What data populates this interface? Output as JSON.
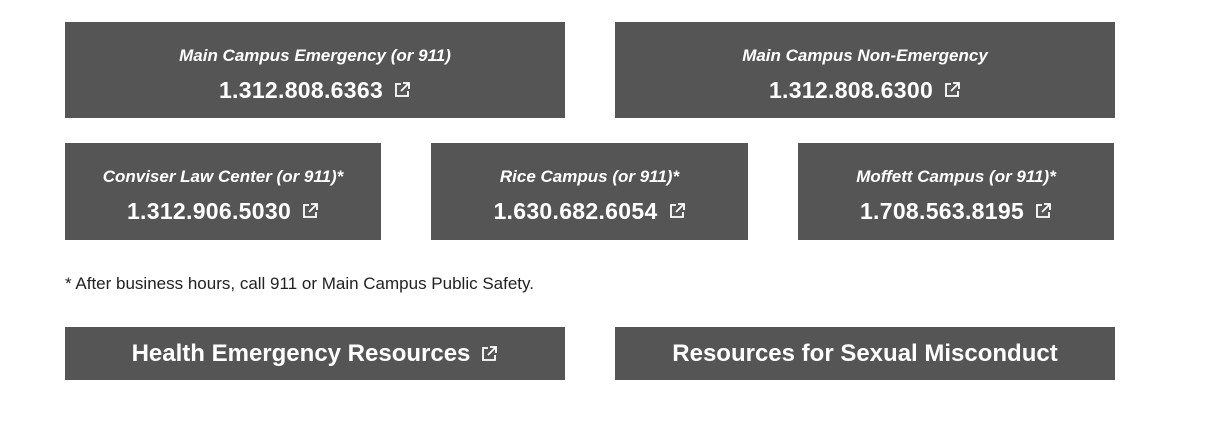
{
  "contacts": {
    "main_emergency": {
      "label": "Main Campus Emergency (or 911)",
      "phone": "1.312.808.6363"
    },
    "main_nonemergency": {
      "label": "Main Campus Non-Emergency",
      "phone": "1.312.808.6300"
    },
    "conviser": {
      "label": "Conviser Law Center (or 911)*",
      "phone": "1.312.906.5030"
    },
    "rice": {
      "label": "Rice Campus (or 911)*",
      "phone": "1.630.682.6054"
    },
    "moffett": {
      "label": "Moffett Campus (or 911)*",
      "phone": "1.708.563.8195"
    }
  },
  "note": "* After business hours, call 911 or Main Campus Public Safety.",
  "buttons": {
    "health": "Health Emergency Resources",
    "sexual": "Resources for Sexual Misconduct"
  },
  "colors": {
    "card_bg": "#555555",
    "card_text": "#ffffff",
    "note_text": "#222222"
  },
  "icons": {
    "external_link": "external-link-icon"
  }
}
